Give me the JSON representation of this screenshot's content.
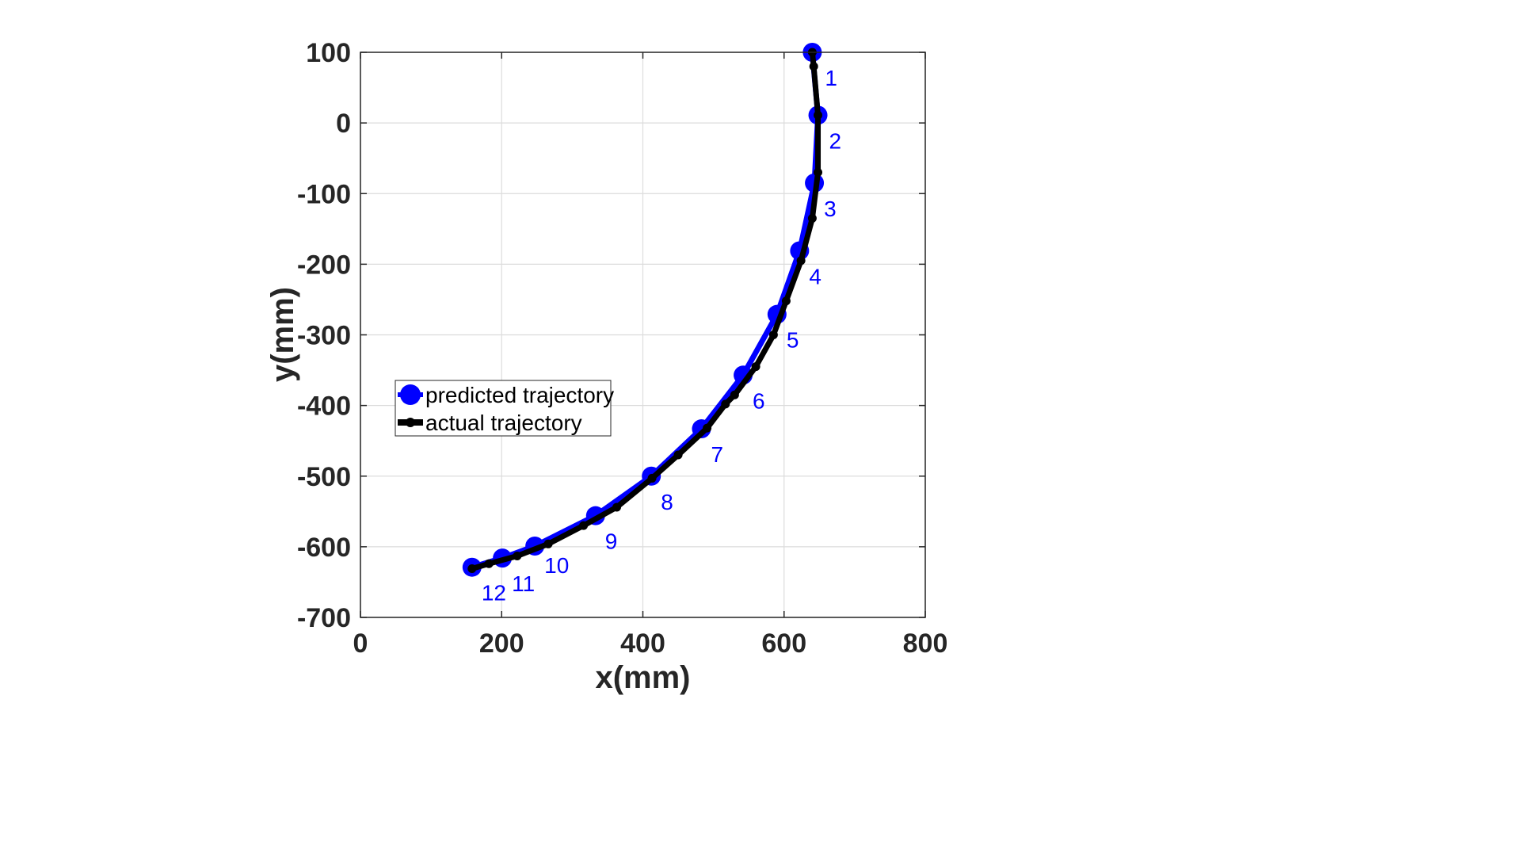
{
  "chart_data": {
    "type": "line",
    "title": "",
    "xlabel": "x(mm)",
    "ylabel": "y(mm)",
    "xlim": [
      0,
      800
    ],
    "ylim": [
      -700,
      100
    ],
    "xticks": [
      0,
      200,
      400,
      600,
      800
    ],
    "yticks": [
      100,
      0,
      -100,
      -200,
      -300,
      -400,
      -500,
      -600,
      -700
    ],
    "xtick_labels": [
      "0",
      "200",
      "400",
      "600",
      "800"
    ],
    "ytick_labels": [
      "100",
      "0",
      "-100",
      "-200",
      "-300",
      "-400",
      "-500",
      "-600",
      "-700"
    ],
    "grid": true,
    "legend_position": "middle-left",
    "series": [
      {
        "name": "predicted trajectory",
        "color": "#0000ff",
        "x": [
          640,
          648,
          643,
          622,
          590,
          542,
          483,
          412,
          333,
          247,
          201,
          158
        ],
        "y": [
          100,
          11,
          -85,
          -181,
          -271,
          -357,
          -433,
          -500,
          -556,
          -599,
          -616,
          -629
        ]
      },
      {
        "name": "actual trajectory",
        "color": "#000000",
        "x": [
          640,
          642,
          648,
          648,
          640,
          624,
          603,
          585,
          560,
          530,
          517,
          491,
          450,
          413,
          363,
          316,
          266,
          222,
          182,
          158
        ],
        "y": [
          100,
          80,
          11,
          -70,
          -135,
          -195,
          -252,
          -300,
          -345,
          -385,
          -398,
          -432,
          -470,
          -503,
          -544,
          -570,
          -596,
          -613,
          -624,
          -631
        ]
      }
    ],
    "point_labels": {
      "color": "#0000ff",
      "labels": [
        "1",
        "2",
        "3",
        "4",
        "5",
        "6",
        "7",
        "8",
        "9",
        "10",
        "11",
        "12"
      ]
    }
  }
}
